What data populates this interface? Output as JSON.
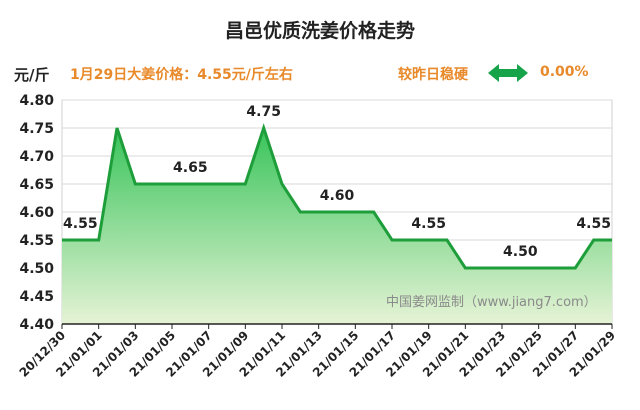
{
  "header": {
    "title": "昌邑优质洗姜价格走势",
    "unit": "元/斤",
    "price_note": "1月29日大姜价格：4.55元/斤左右",
    "trend_label": "较昨日稳硬",
    "trend_value": "0.00%",
    "trend_icon": "double-arrow-icon",
    "trend_color": "#16a34a"
  },
  "watermark": "中国姜网监制（www.jiang7.com）",
  "chart_data": {
    "type": "area",
    "x": [
      "20/12/30",
      "20/12/31",
      "21/01/01",
      "21/01/02",
      "21/01/03",
      "21/01/04",
      "21/01/05",
      "21/01/06",
      "21/01/07",
      "21/01/08",
      "21/01/09",
      "21/01/10",
      "21/01/11",
      "21/01/12",
      "21/01/13",
      "21/01/14",
      "21/01/15",
      "21/01/16",
      "21/01/17",
      "21/01/18",
      "21/01/19",
      "21/01/20",
      "21/01/21",
      "21/01/22",
      "21/01/23",
      "21/01/24",
      "21/01/25",
      "21/01/26",
      "21/01/27",
      "21/01/28",
      "21/01/29"
    ],
    "x_tick_labels": [
      "20/12/30",
      "21/01/01",
      "21/01/03",
      "21/01/05",
      "21/01/07",
      "21/01/09",
      "21/01/11",
      "21/01/13",
      "21/01/15",
      "21/01/17",
      "21/01/19",
      "21/01/21",
      "21/01/23",
      "21/01/25",
      "21/01/27",
      "21/01/29"
    ],
    "values": [
      4.55,
      4.55,
      4.55,
      4.75,
      4.65,
      4.65,
      4.65,
      4.65,
      4.65,
      4.65,
      4.65,
      4.75,
      4.65,
      4.6,
      4.6,
      4.6,
      4.6,
      4.6,
      4.55,
      4.55,
      4.55,
      4.55,
      4.5,
      4.5,
      4.5,
      4.5,
      4.5,
      4.5,
      4.5,
      4.55,
      4.55
    ],
    "data_labels": [
      {
        "x": "20/12/31",
        "text": "4.55"
      },
      {
        "x": "21/01/06",
        "text": "4.65"
      },
      {
        "x": "21/01/10",
        "text": "4.75"
      },
      {
        "x": "21/01/14",
        "text": "4.60"
      },
      {
        "x": "21/01/19",
        "text": "4.55"
      },
      {
        "x": "21/01/24",
        "text": "4.50"
      },
      {
        "x": "21/01/28",
        "text": "4.55"
      }
    ],
    "y_ticks": [
      "4.80",
      "4.75",
      "4.70",
      "4.65",
      "4.60",
      "4.55",
      "4.50",
      "4.45",
      "4.40"
    ],
    "ylim": [
      4.4,
      4.8
    ],
    "grid": true,
    "line_color": "#1e9e3a",
    "fill_top_color": "#38c45a",
    "fill_bottom_color": "#e6f3d6"
  }
}
